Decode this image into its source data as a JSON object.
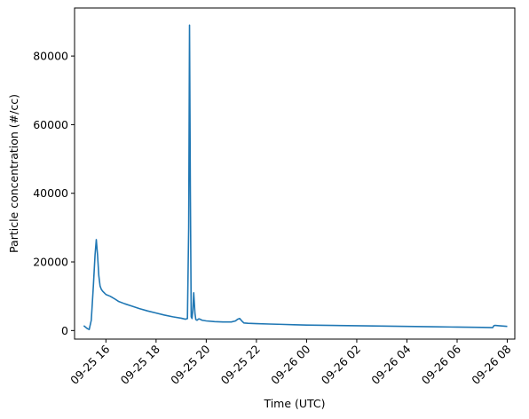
{
  "chart_data": {
    "type": "line",
    "title": "",
    "xlabel": "Time (UTC)",
    "ylabel": "Particle concentration (#/cc)",
    "x_unit": "hours",
    "xlim": [
      "09-25 14:45",
      "09-26 08:18"
    ],
    "ylim": [
      -2500,
      94000
    ],
    "grid": false,
    "legend": "none",
    "color": "#1f77b4",
    "x_ticks": [
      {
        "value": "09-25 16:00",
        "label": "09-25 16"
      },
      {
        "value": "09-25 18:00",
        "label": "09-25 18"
      },
      {
        "value": "09-25 20:00",
        "label": "09-25 20"
      },
      {
        "value": "09-25 22:00",
        "label": "09-25 22"
      },
      {
        "value": "09-26 00:00",
        "label": "09-26 00"
      },
      {
        "value": "09-26 02:00",
        "label": "09-26 02"
      },
      {
        "value": "09-26 04:00",
        "label": "09-26 04"
      },
      {
        "value": "09-26 06:00",
        "label": "09-26 06"
      },
      {
        "value": "09-26 08:00",
        "label": "09-26 08"
      }
    ],
    "y_ticks": [
      {
        "value": 0,
        "label": "0"
      },
      {
        "value": 20000,
        "label": "20000"
      },
      {
        "value": 40000,
        "label": "40000"
      },
      {
        "value": 60000,
        "label": "60000"
      },
      {
        "value": 80000,
        "label": "80000"
      }
    ],
    "series": [
      {
        "x": [
          "09-25 15:07",
          "09-25 15:15",
          "09-25 15:20",
          "09-25 15:25",
          "09-25 15:30",
          "09-25 15:34",
          "09-25 15:37",
          "09-25 15:40",
          "09-25 15:43",
          "09-25 15:46",
          "09-25 15:49",
          "09-25 15:52",
          "09-25 15:56",
          "09-25 16:00",
          "09-25 16:10",
          "09-25 16:20",
          "09-25 16:30",
          "09-25 16:45",
          "09-25 17:00",
          "09-25 17:20",
          "09-25 17:40",
          "09-25 18:00",
          "09-25 18:20",
          "09-25 18:40",
          "09-25 19:00",
          "09-25 19:10",
          "09-25 19:15",
          "09-25 19:18",
          "09-25 19:20",
          "09-25 19:22",
          "09-25 19:24",
          "09-25 19:26",
          "09-25 19:28",
          "09-25 19:30",
          "09-25 19:33",
          "09-25 19:35",
          "09-25 19:38",
          "09-25 19:42",
          "09-25 19:45",
          "09-25 19:50",
          "09-25 20:00",
          "09-25 20:20",
          "09-25 20:40",
          "09-25 21:00",
          "09-25 21:10",
          "09-25 21:15",
          "09-25 21:20",
          "09-25 21:25",
          "09-25 21:30",
          "09-25 21:40",
          "09-25 22:00",
          "09-25 22:30",
          "09-25 23:00",
          "09-25 23:30",
          "09-26 00:00",
          "09-26 01:00",
          "09-26 02:00",
          "09-26 03:00",
          "09-26 04:00",
          "09-26 05:00",
          "09-26 06:00",
          "09-26 07:00",
          "09-26 07:25",
          "09-26 07:28",
          "09-26 07:31",
          "09-26 07:40",
          "09-26 07:50",
          "09-26 08:00"
        ],
        "y": [
          1400,
          600,
          300,
          3000,
          13000,
          22000,
          26500,
          22000,
          16000,
          13000,
          12000,
          11500,
          11000,
          10500,
          10000,
          9300,
          8500,
          7800,
          7200,
          6400,
          5700,
          5100,
          4500,
          4000,
          3600,
          3300,
          3500,
          30000,
          89000,
          40000,
          4000,
          3500,
          6000,
          11000,
          5000,
          3200,
          3000,
          3400,
          3300,
          3000,
          2800,
          2600,
          2500,
          2500,
          2800,
          3300,
          3500,
          2800,
          2200,
          2100,
          2000,
          1900,
          1800,
          1700,
          1600,
          1500,
          1400,
          1300,
          1200,
          1100,
          1000,
          900,
          850,
          1400,
          1500,
          1400,
          1300,
          1200
        ]
      }
    ]
  }
}
